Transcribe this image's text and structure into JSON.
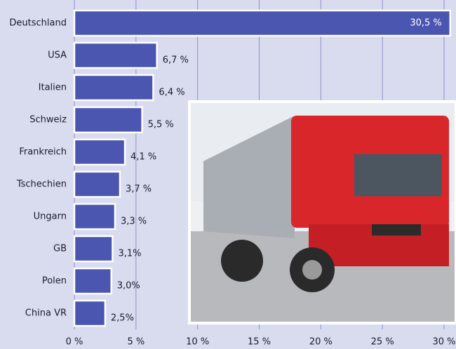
{
  "chart_data": {
    "type": "hbar",
    "categories": [
      "Deutschland",
      "USA",
      "Italien",
      "Schweiz",
      "Frankreich",
      "Tschechien",
      "Ungarn",
      "GB",
      "Polen",
      "China VR"
    ],
    "values": [
      30.5,
      6.7,
      6.4,
      5.5,
      4.1,
      3.7,
      3.3,
      3.1,
      3.0,
      2.5
    ],
    "value_labels": [
      "30,5 %",
      "6,7 %",
      "6,4 %",
      "5,5 %",
      "4,1 %",
      "3,7 %",
      "3,3 %",
      "3,1%",
      "3,0%",
      "2,5%"
    ],
    "color": "#4a56b0",
    "xlim": [
      0,
      30
    ],
    "xticks": [
      {
        "value": 0,
        "label": "0 %"
      },
      {
        "value": 5,
        "label": "5 %"
      },
      {
        "value": 10,
        "label": "10 %"
      },
      {
        "value": 15,
        "label": "15 %"
      },
      {
        "value": 20,
        "label": "20 %"
      },
      {
        "value": 25,
        "label": "25 %"
      },
      {
        "value": 30,
        "label": "30 %"
      }
    ],
    "grid": true
  }
}
